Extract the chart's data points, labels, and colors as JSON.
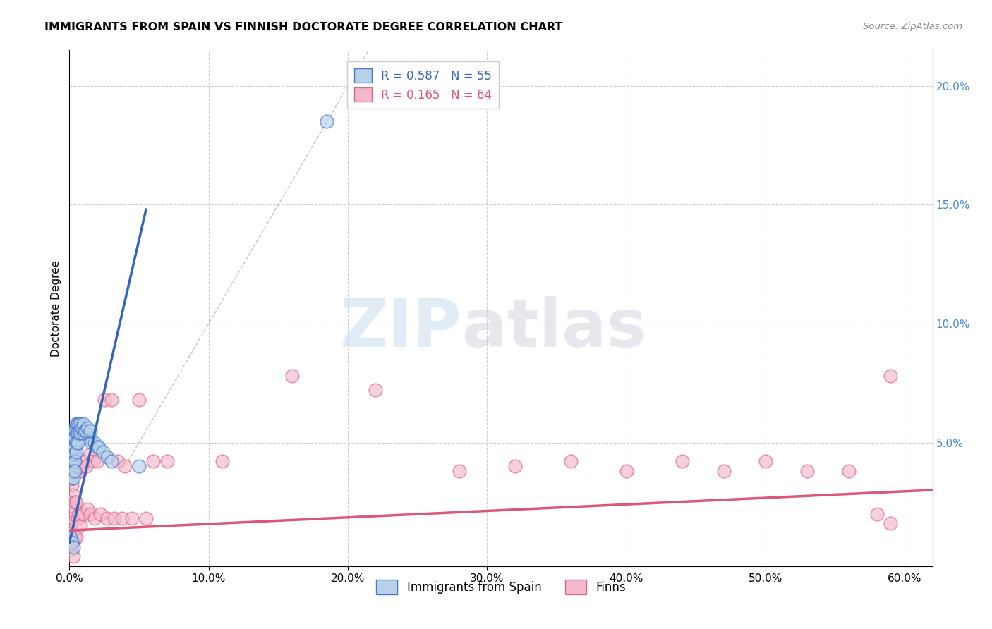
{
  "title": "IMMIGRANTS FROM SPAIN VS FINNISH DOCTORATE DEGREE CORRELATION CHART",
  "source": "Source: ZipAtlas.com",
  "ylabel": "Doctorate Degree",
  "xlim": [
    0.0,
    0.62
  ],
  "ylim": [
    -0.002,
    0.215
  ],
  "xticklabels": [
    "0.0%",
    "10.0%",
    "20.0%",
    "30.0%",
    "40.0%",
    "50.0%",
    "60.0%"
  ],
  "xtick_vals": [
    0.0,
    0.1,
    0.2,
    0.3,
    0.4,
    0.5,
    0.6
  ],
  "yticks_right": [
    0.05,
    0.1,
    0.15,
    0.2
  ],
  "ytick_labels_right": [
    "5.0%",
    "10.0%",
    "15.0%",
    "20.0%"
  ],
  "legend_text_blue": "R = 0.587   N = 55",
  "legend_text_pink": "R = 0.165   N = 64",
  "legend_label_blue": "Immigrants from Spain",
  "legend_label_pink": "Finns",
  "blue_color": "#b8d0e8",
  "blue_edge_color": "#4477cc",
  "pink_color": "#f4b8cc",
  "pink_edge_color": "#dd6688",
  "blue_line_color": "#3366bb",
  "pink_line_color": "#dd5577",
  "watermark_zip": "ZIP",
  "watermark_atlas": "atlas",
  "blue_scatter_x": [
    0.001,
    0.001,
    0.001,
    0.001,
    0.002,
    0.002,
    0.002,
    0.002,
    0.002,
    0.002,
    0.002,
    0.002,
    0.003,
    0.003,
    0.003,
    0.003,
    0.003,
    0.003,
    0.003,
    0.004,
    0.004,
    0.004,
    0.004,
    0.004,
    0.004,
    0.005,
    0.005,
    0.005,
    0.005,
    0.006,
    0.006,
    0.006,
    0.007,
    0.007,
    0.008,
    0.008,
    0.009,
    0.01,
    0.01,
    0.011,
    0.012,
    0.013,
    0.015,
    0.016,
    0.018,
    0.02,
    0.021,
    0.024,
    0.027,
    0.03,
    0.001,
    0.002,
    0.003,
    0.05,
    0.185
  ],
  "blue_scatter_y": [
    0.048,
    0.052,
    0.046,
    0.044,
    0.055,
    0.05,
    0.048,
    0.045,
    0.043,
    0.04,
    0.038,
    0.035,
    0.055,
    0.052,
    0.048,
    0.045,
    0.042,
    0.038,
    0.035,
    0.055,
    0.052,
    0.048,
    0.045,
    0.042,
    0.038,
    0.058,
    0.054,
    0.05,
    0.046,
    0.058,
    0.054,
    0.05,
    0.058,
    0.054,
    0.058,
    0.054,
    0.056,
    0.058,
    0.054,
    0.055,
    0.055,
    0.056,
    0.055,
    0.05,
    0.05,
    0.048,
    0.048,
    0.046,
    0.044,
    0.042,
    0.01,
    0.008,
    0.006,
    0.04,
    0.185
  ],
  "pink_scatter_x": [
    0.001,
    0.001,
    0.001,
    0.001,
    0.001,
    0.002,
    0.002,
    0.002,
    0.002,
    0.003,
    0.003,
    0.003,
    0.003,
    0.004,
    0.004,
    0.004,
    0.005,
    0.005,
    0.005,
    0.006,
    0.006,
    0.007,
    0.007,
    0.008,
    0.008,
    0.009,
    0.01,
    0.01,
    0.012,
    0.013,
    0.015,
    0.015,
    0.017,
    0.018,
    0.02,
    0.022,
    0.025,
    0.027,
    0.03,
    0.032,
    0.035,
    0.038,
    0.04,
    0.045,
    0.05,
    0.055,
    0.06,
    0.07,
    0.11,
    0.16,
    0.22,
    0.28,
    0.32,
    0.36,
    0.4,
    0.44,
    0.47,
    0.5,
    0.53,
    0.56,
    0.58,
    0.59,
    0.59,
    0.003
  ],
  "pink_scatter_y": [
    0.04,
    0.035,
    0.025,
    0.015,
    0.005,
    0.042,
    0.032,
    0.022,
    0.012,
    0.04,
    0.028,
    0.018,
    0.008,
    0.038,
    0.025,
    0.01,
    0.04,
    0.025,
    0.01,
    0.038,
    0.018,
    0.04,
    0.02,
    0.038,
    0.015,
    0.04,
    0.042,
    0.02,
    0.04,
    0.022,
    0.045,
    0.02,
    0.042,
    0.018,
    0.042,
    0.02,
    0.068,
    0.018,
    0.068,
    0.018,
    0.042,
    0.018,
    0.04,
    0.018,
    0.068,
    0.018,
    0.042,
    0.042,
    0.042,
    0.078,
    0.072,
    0.038,
    0.04,
    0.042,
    0.038,
    0.042,
    0.038,
    0.042,
    0.038,
    0.038,
    0.02,
    0.016,
    0.078,
    0.002
  ],
  "blue_line_x": [
    0.0,
    0.055
  ],
  "blue_line_y": [
    0.008,
    0.148
  ],
  "pink_line_x": [
    0.0,
    0.62
  ],
  "pink_line_y": [
    0.013,
    0.03
  ],
  "diag_line_x": [
    0.04,
    0.215
  ],
  "diag_line_y": [
    0.04,
    0.215
  ]
}
